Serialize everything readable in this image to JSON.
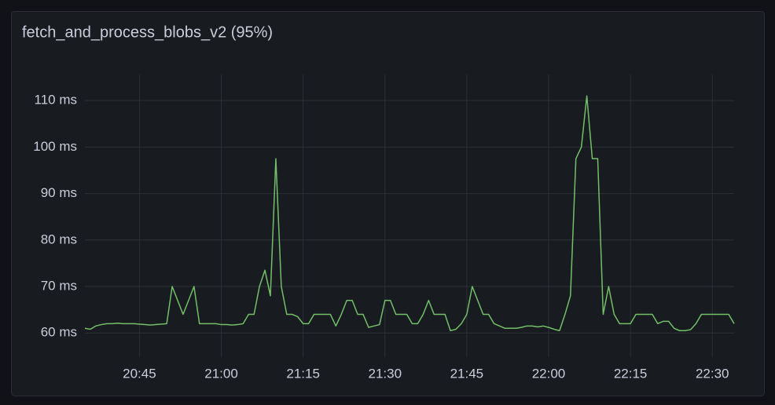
{
  "chart_data": {
    "type": "line",
    "title": "fetch_and_process_blobs_v2 (95%)",
    "x": [
      "20:35",
      "20:36",
      "20:37",
      "20:38",
      "20:39",
      "20:40",
      "20:41",
      "20:42",
      "20:43",
      "20:44",
      "20:45",
      "20:46",
      "20:47",
      "20:48",
      "20:49",
      "20:50",
      "20:51",
      "20:52",
      "20:53",
      "20:54",
      "20:55",
      "20:56",
      "20:57",
      "20:58",
      "20:59",
      "21:00",
      "21:01",
      "21:02",
      "21:03",
      "21:04",
      "21:05",
      "21:06",
      "21:07",
      "21:08",
      "21:09",
      "21:10",
      "21:11",
      "21:12",
      "21:13",
      "21:14",
      "21:15",
      "21:16",
      "21:17",
      "21:18",
      "21:19",
      "21:20",
      "21:21",
      "21:22",
      "21:23",
      "21:24",
      "21:25",
      "21:26",
      "21:27",
      "21:28",
      "21:29",
      "21:30",
      "21:31",
      "21:32",
      "21:33",
      "21:34",
      "21:35",
      "21:36",
      "21:37",
      "21:38",
      "21:39",
      "21:40",
      "21:41",
      "21:42",
      "21:43",
      "21:44",
      "21:45",
      "21:46",
      "21:47",
      "21:48",
      "21:49",
      "21:50",
      "21:51",
      "21:52",
      "21:53",
      "21:54",
      "21:55",
      "21:56",
      "21:57",
      "21:58",
      "21:59",
      "22:00",
      "22:01",
      "22:02",
      "22:03",
      "22:04",
      "22:05",
      "22:06",
      "22:07",
      "22:08",
      "22:09",
      "22:10",
      "22:11",
      "22:12",
      "22:13",
      "22:14",
      "22:15",
      "22:16",
      "22:17",
      "22:18",
      "22:19",
      "22:20",
      "22:21",
      "22:22",
      "22:23",
      "22:24",
      "22:25",
      "22:26",
      "22:27",
      "22:28",
      "22:29",
      "22:30",
      "22:31",
      "22:32",
      "22:33",
      "22:34"
    ],
    "series": [
      {
        "color": "#73bf69",
        "values": [
          61,
          60.8,
          61.5,
          61.8,
          62,
          62,
          62.1,
          62,
          62,
          62,
          61.9,
          61.8,
          61.7,
          61.8,
          61.9,
          62,
          70,
          67,
          64,
          67,
          70,
          62,
          62,
          62,
          62,
          61.8,
          61.8,
          61.7,
          61.8,
          62,
          64,
          64,
          70,
          73.5,
          68,
          97.5,
          70,
          64,
          64,
          63.5,
          62,
          62,
          64,
          64,
          64,
          64,
          61.5,
          64,
          67,
          67,
          64,
          64,
          61.2,
          61.5,
          61.8,
          67,
          67,
          64,
          64,
          64,
          62,
          62,
          64,
          67,
          64,
          64,
          64,
          60.5,
          60.8,
          62,
          64,
          70,
          67,
          64,
          64,
          62,
          61.5,
          61,
          61,
          61,
          61.2,
          61.5,
          61.5,
          61.3,
          61.5,
          61.2,
          60.8,
          60.5,
          64,
          68,
          97.5,
          100,
          111,
          97.5,
          97.5,
          64,
          70,
          64,
          62,
          62,
          62,
          64,
          64,
          64,
          64,
          62,
          62.5,
          62.5,
          61,
          60.5,
          60.5,
          60.7,
          62,
          64,
          64,
          64,
          64,
          64,
          64,
          62
        ]
      }
    ],
    "xlim": [
      "20:35",
      "22:34"
    ],
    "xticks": [
      "20:45",
      "21:00",
      "21:15",
      "21:30",
      "21:45",
      "22:00",
      "22:15",
      "22:30"
    ],
    "ylim": [
      54.8,
      115.6
    ],
    "yticks": [
      {
        "value": 60,
        "label": "60 ms"
      },
      {
        "value": 70,
        "label": "70 ms"
      },
      {
        "value": 80,
        "label": "80 ms"
      },
      {
        "value": 90,
        "label": "90 ms"
      },
      {
        "value": 100,
        "label": "100 ms"
      },
      {
        "value": 110,
        "label": "110 ms"
      }
    ],
    "grid": true
  }
}
